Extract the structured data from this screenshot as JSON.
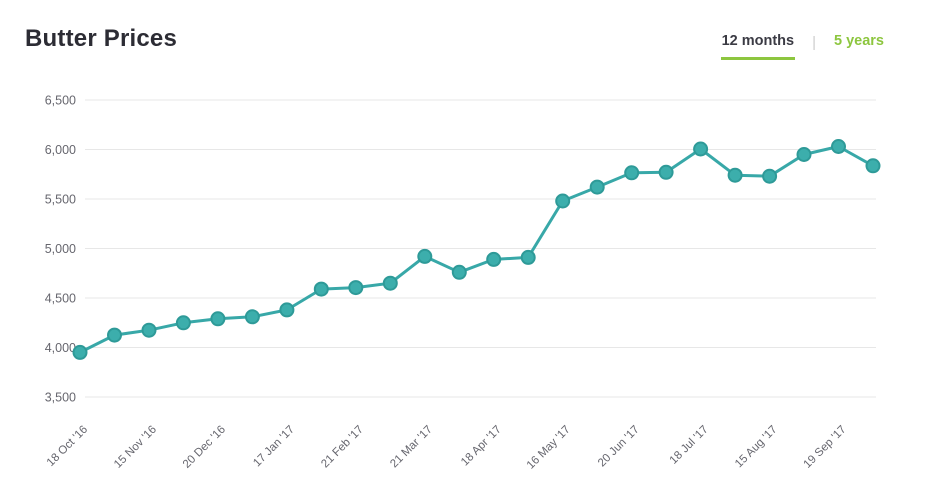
{
  "header": {
    "title": "Butter Prices",
    "tabs": [
      {
        "id": "12-months",
        "label": "12 months",
        "active": true
      },
      {
        "id": "5-years",
        "label": "5 years",
        "active": false
      }
    ],
    "tab_divider": "|"
  },
  "colors": {
    "accent_green": "#8DC63F",
    "title_text": "#2C2C34",
    "tab_active_text": "#3B3B44",
    "tab_divider": "#CCCCCC",
    "axis_label": "#66666E",
    "gridline": "#E7E7E7",
    "line": "#38A8A8",
    "marker_fill": "#3CAEAC",
    "marker_stroke": "#2E9A98"
  },
  "chart_data": {
    "type": "line",
    "title": "Butter Prices",
    "xlabel": "",
    "ylabel": "",
    "ylim": [
      3500,
      6500
    ],
    "y_ticks": [
      6500,
      6000,
      5500,
      5000,
      4500,
      4000,
      3500
    ],
    "grid": "horizontal-only",
    "legend": "none",
    "x_tick_labels": [
      "18 Oct '16",
      "15 Nov '16",
      "20 Dec '16",
      "17 Jan '17",
      "21 Feb '17",
      "21 Mar '17",
      "18 Apr '17",
      "16 May '17",
      "20 Jun '17",
      "18 Jul '17",
      "15 Aug '17",
      "19 Sep '17"
    ],
    "x_label_every_n_points": 2,
    "x_tick_label_rotation_deg": -45,
    "series": [
      {
        "name": "Butter Prices",
        "values": [
          3950,
          4125,
          4175,
          4250,
          4290,
          4310,
          4380,
          4590,
          4605,
          4650,
          4920,
          4760,
          4890,
          4910,
          5480,
          5620,
          5765,
          5770,
          6005,
          5740,
          5730,
          5950,
          6030,
          5835
        ]
      }
    ]
  }
}
